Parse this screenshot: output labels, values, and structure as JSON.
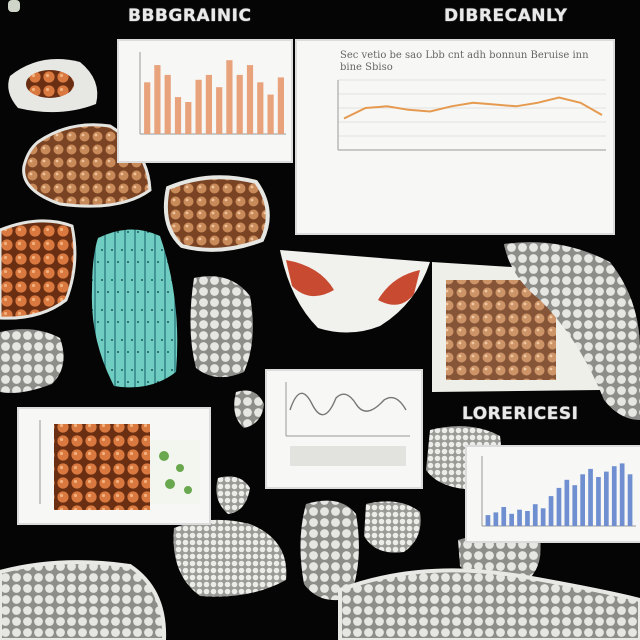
{
  "headings": {
    "top_left": "BBBGRAINIC",
    "top_right": "DIBRECANLY",
    "middle_right": "LORERICESI"
  },
  "panels": {
    "line_panel_title": "Sec vetio be sao Lbb cnt adh bonnun Beruise inn bine Sbiso"
  },
  "colors": {
    "background": "#050505",
    "panel": "#f7f7f5",
    "bar_salmon": "#e8a27c",
    "line_orange": "#e59a4f",
    "bar_blue": "#6f8fd0",
    "tissue_orange": "#d9783f",
    "tissue_teal": "#6fcdc1",
    "tissue_gray": "#d8d8d6"
  },
  "chart_data": [
    {
      "type": "bar",
      "values": [
        42,
        56,
        48,
        30,
        26,
        44,
        48,
        38,
        60,
        48,
        56,
        42,
        32,
        46
      ],
      "ylim": [
        0,
        65
      ]
    },
    {
      "type": "line",
      "values": [
        18,
        24,
        25,
        23,
        22,
        25,
        27,
        26,
        25,
        27,
        30,
        27,
        20
      ],
      "ylim": [
        0,
        40
      ]
    },
    {
      "type": "bar",
      "values": [
        8,
        10,
        14,
        9,
        12,
        11,
        16,
        13,
        22,
        28,
        34,
        30,
        38,
        42,
        36,
        40,
        44,
        46,
        38
      ],
      "ylim": [
        0,
        50
      ]
    }
  ]
}
